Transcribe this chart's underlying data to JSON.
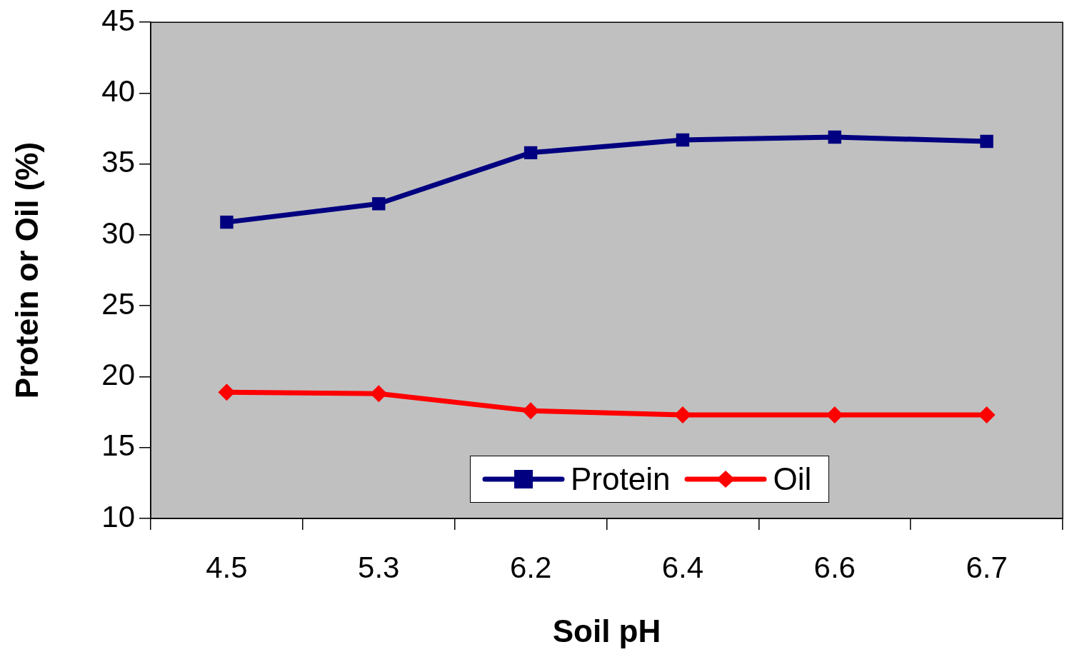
{
  "chart_data": {
    "type": "line",
    "xlabel": "Soil pH",
    "ylabel": "Protein or Oil (%)",
    "categories": [
      "4.5",
      "5.3",
      "6.2",
      "6.4",
      "6.6",
      "6.7"
    ],
    "series": [
      {
        "name": "Protein",
        "color": "#000080",
        "marker": "square",
        "values": [
          30.9,
          32.2,
          35.8,
          36.7,
          36.9,
          36.6
        ]
      },
      {
        "name": "Oil",
        "color": "#ff0000",
        "marker": "diamond",
        "values": [
          18.9,
          18.8,
          17.6,
          17.3,
          17.3,
          17.3
        ]
      }
    ],
    "ylim": [
      10,
      45
    ],
    "yticks": [
      10,
      15,
      20,
      25,
      30,
      35,
      40,
      45
    ],
    "grid": false,
    "legend": "bottom",
    "line_style": "solid"
  }
}
